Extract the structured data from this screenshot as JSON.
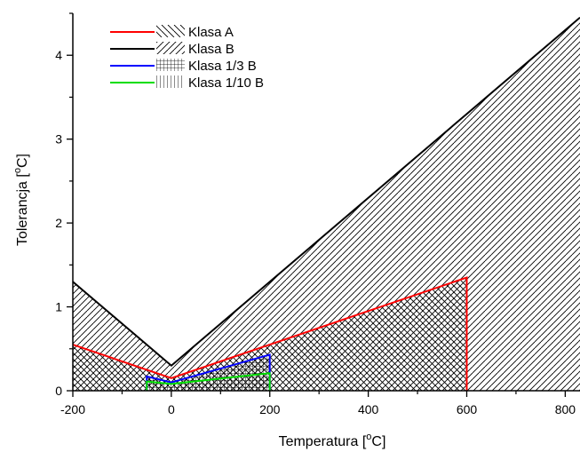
{
  "chart_data": {
    "type": "area",
    "title": "",
    "xlabel": {
      "prefix": "Temperatura [",
      "sup": "o",
      "suffix": "C]"
    },
    "ylabel": {
      "prefix": "Tolerancja [",
      "sup": "o",
      "suffix": "C]"
    },
    "xlim": [
      -200,
      830
    ],
    "ylim": [
      0,
      4.5
    ],
    "xticks": [
      -200,
      0,
      200,
      400,
      600,
      800
    ],
    "yticks": [
      0,
      1,
      2,
      3,
      4
    ],
    "grid": false,
    "legend_position": "top-left",
    "series": [
      {
        "name": "Klasa A",
        "color": "#ff0000",
        "hatch": "backslash",
        "x": [
          -200,
          0,
          600,
          600
        ],
        "y": [
          0.55,
          0.15,
          1.35,
          0
        ]
      },
      {
        "name": "Klasa B",
        "color": "#000000",
        "hatch": "slash",
        "x": [
          -200,
          0,
          830
        ],
        "y": [
          1.3,
          0.3,
          4.45
        ]
      },
      {
        "name": "Klasa 1/3 B",
        "color": "#0000ff",
        "hatch": "grid",
        "x": [
          -50,
          -50,
          0,
          200,
          200
        ],
        "y": [
          0,
          0.17,
          0.1,
          0.43,
          0
        ]
      },
      {
        "name": "Klasa 1/10 B",
        "color": "#00dd00",
        "hatch": "vertical",
        "x": [
          -50,
          -50,
          0,
          200,
          200
        ],
        "y": [
          0,
          0.11,
          0.08,
          0.21,
          0
        ]
      }
    ]
  }
}
